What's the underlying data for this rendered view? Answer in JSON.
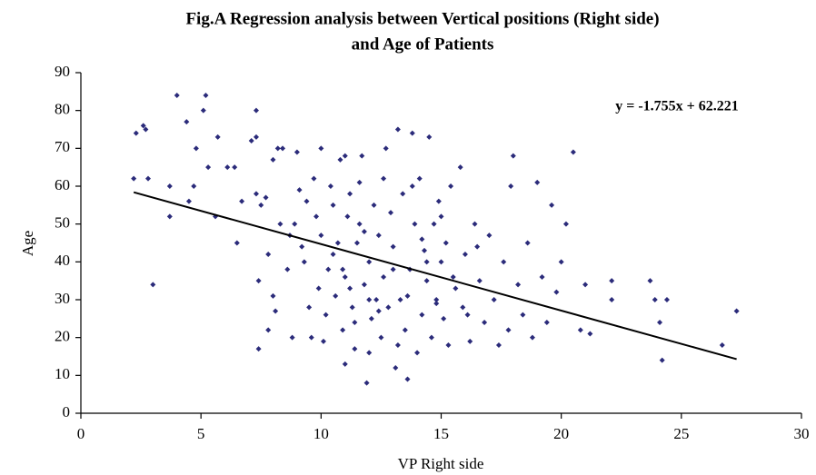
{
  "chart_data": {
    "type": "scatter",
    "title": [
      "Fig.A Regression analysis between Vertical positions (Right side)",
      "and Age of Patients"
    ],
    "x_label": "VP Right side",
    "y_label": "Age",
    "annotation": "y = -1.755x + 62.221",
    "xlim": [
      0,
      30
    ],
    "xticks": [
      0,
      5,
      10,
      15,
      20,
      25,
      30
    ],
    "ylim": [
      0,
      90
    ],
    "yticks": [
      0,
      10,
      20,
      30,
      40,
      50,
      60,
      70,
      80,
      90
    ],
    "grid": false,
    "series": [
      {
        "name": "Age",
        "color": "#2b2b7a",
        "x": [
          2.2,
          2.3,
          2.6,
          2.7,
          2.8,
          3,
          3.7,
          3.7,
          4,
          4.4,
          4.5,
          4.7,
          4.8,
          5.1,
          5.2,
          5.3,
          5.6,
          5.7,
          6.1,
          6.4,
          6.5,
          6.7,
          7.1,
          7.3,
          7.3,
          7.3,
          7.4,
          7.4,
          7.5,
          7.7,
          7.8,
          7.8,
          8,
          8,
          8.1,
          8.2,
          8.3,
          8.4,
          8.6,
          8.7,
          8.8,
          8.9,
          9,
          9.1,
          9.2,
          9.3,
          9.4,
          9.5,
          9.6,
          9.7,
          9.8,
          9.9,
          10,
          10,
          10.1,
          10.2,
          10.3,
          10.4,
          10.5,
          10.6,
          10.7,
          10.8,
          10.9,
          11,
          11,
          11,
          11.1,
          11.2,
          11.3,
          11.4,
          11.5,
          11.6,
          11.7,
          11.8,
          11.9,
          12,
          12,
          12.1,
          12.2,
          12.3,
          12.4,
          12.5,
          12.6,
          12.7,
          12.8,
          12.9,
          13,
          13.1,
          13.2,
          13.3,
          13.4,
          13.5,
          13.6,
          13.7,
          13.8,
          13.9,
          14,
          14.1,
          14.2,
          14.3,
          14.4,
          14.5,
          14.6,
          14.7,
          14.8,
          14.9,
          15,
          15.1,
          15.2,
          15.3,
          15.4,
          15.6,
          15.8,
          15.9,
          16,
          16.2,
          16.4,
          16.6,
          16.8,
          17,
          17.2,
          17.4,
          17.6,
          17.8,
          17.9,
          18,
          18.2,
          18.4,
          18.6,
          18.8,
          19,
          19.2,
          19.4,
          19.6,
          19.8,
          20,
          20.2,
          20.5,
          20.8,
          21,
          21.2,
          22.1,
          22.1,
          23.7,
          23.9,
          24.1,
          24.2,
          24.4,
          26.7,
          27.3,
          10.5,
          11.2,
          11.8,
          12.4,
          13,
          13.6,
          14.2,
          14.8,
          15.5,
          16.1,
          12.6,
          13.2,
          11.4,
          14.4,
          15.0,
          16.5,
          12.0,
          13.8,
          10.9,
          11.6
        ],
        "values": [
          62,
          74,
          76,
          75,
          62,
          34,
          60,
          52,
          84,
          77,
          56,
          60,
          70,
          80,
          84,
          65,
          52,
          73,
          65,
          65,
          45,
          56,
          72,
          80,
          73,
          58,
          17,
          35,
          55,
          57,
          22,
          42,
          67,
          31,
          27,
          70,
          50,
          70,
          38,
          47,
          20,
          50,
          69,
          59,
          44,
          40,
          56,
          28,
          20,
          62,
          52,
          33,
          70,
          47,
          19,
          26,
          38,
          60,
          55,
          31,
          45,
          67,
          22,
          68,
          36,
          13,
          52,
          58,
          28,
          17,
          45,
          61,
          68,
          34,
          8,
          40,
          16,
          25,
          55,
          30,
          47,
          20,
          36,
          70,
          28,
          53,
          44,
          12,
          75,
          30,
          58,
          22,
          9,
          38,
          74,
          50,
          16,
          62,
          26,
          43,
          35,
          73,
          20,
          50,
          30,
          56,
          40,
          25,
          45,
          18,
          60,
          33,
          65,
          28,
          42,
          19,
          50,
          35,
          24,
          47,
          30,
          18,
          40,
          22,
          60,
          68,
          34,
          26,
          45,
          20,
          61,
          36,
          24,
          55,
          32,
          40,
          50,
          69,
          22,
          34,
          21,
          35,
          30,
          35,
          30,
          24,
          14,
          30,
          18,
          27,
          42,
          33,
          48,
          27,
          38,
          31,
          46,
          29,
          36,
          26,
          62,
          18,
          24,
          40,
          52,
          44,
          30,
          60,
          38,
          50
        ]
      },
      {
        "name": "Trend",
        "color": "#000000",
        "x": [
          2.2,
          27.3
        ],
        "values": [
          58.4,
          14.3
        ]
      }
    ]
  }
}
